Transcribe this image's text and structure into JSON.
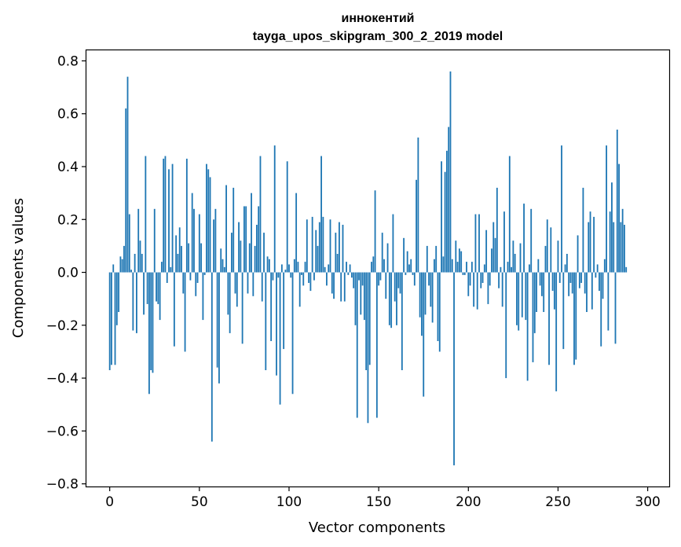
{
  "chart_data": {
    "type": "bar",
    "title": "иннокентий",
    "subtitle": "tayga_upos_skipgram_300_2_2019 model",
    "xlabel": "Vector components",
    "ylabel": "Components values",
    "xlim": [
      -13,
      312
    ],
    "ylim": [
      -0.81,
      0.84
    ],
    "xticks": [
      0,
      50,
      100,
      150,
      200,
      250,
      300
    ],
    "yticks": [
      -0.8,
      -0.6,
      -0.4,
      -0.2,
      0.0,
      0.2,
      0.4,
      0.6,
      0.8
    ],
    "xtick_labels": [
      "0",
      "50",
      "100",
      "150",
      "200",
      "250",
      "300"
    ],
    "ytick_labels": [
      "−0.8",
      "−0.6",
      "−0.4",
      "−0.2",
      "0.0",
      "0.2",
      "0.4",
      "0.6",
      "0.8"
    ],
    "bar_color": "#1f77b4",
    "grid": false,
    "values": [
      -0.37,
      -0.35,
      0.03,
      -0.35,
      -0.2,
      -0.15,
      0.06,
      0.05,
      0.1,
      0.62,
      0.74,
      0.22,
      0.01,
      -0.22,
      0.07,
      -0.23,
      0.24,
      0.12,
      0.07,
      -0.16,
      0.44,
      -0.12,
      -0.46,
      -0.37,
      -0.38,
      0.24,
      -0.11,
      -0.12,
      -0.18,
      0.04,
      0.43,
      0.44,
      -0.04,
      0.39,
      0.02,
      0.41,
      -0.28,
      0.14,
      0.07,
      0.17,
      0.1,
      -0.08,
      -0.3,
      0.43,
      0.11,
      -0.03,
      0.3,
      0.24,
      -0.09,
      -0.04,
      0.22,
      0.11,
      -0.18,
      -0.01,
      0.41,
      0.39,
      0.36,
      -0.64,
      0.2,
      0.24,
      -0.36,
      -0.42,
      0.09,
      0.05,
      0.02,
      0.33,
      -0.16,
      -0.23,
      0.15,
      0.32,
      -0.08,
      -0.13,
      0.19,
      0.12,
      -0.27,
      0.25,
      0.25,
      -0.08,
      0.11,
      0.3,
      -0.09,
      0.1,
      0.18,
      0.25,
      0.44,
      -0.11,
      0.15,
      -0.37,
      0.06,
      0.05,
      -0.26,
      -0.03,
      0.48,
      -0.39,
      -0.02,
      -0.5,
      0.03,
      -0.29,
      0.01,
      0.42,
      0.03,
      -0.02,
      -0.46,
      0.05,
      0.3,
      0.04,
      -0.13,
      -0.01,
      -0.05,
      0.04,
      0.2,
      -0.04,
      -0.07,
      0.21,
      -0.03,
      0.16,
      0.1,
      0.19,
      0.44,
      0.21,
      0.02,
      -0.05,
      0.03,
      0.2,
      -0.08,
      -0.1,
      0.15,
      0.07,
      0.19,
      -0.11,
      0.18,
      -0.11,
      0.04,
      -0.01,
      0.03,
      -0.02,
      -0.06,
      -0.2,
      -0.55,
      -0.03,
      -0.16,
      -0.05,
      -0.18,
      -0.37,
      -0.57,
      -0.35,
      0.04,
      0.06,
      0.31,
      -0.55,
      -0.05,
      -0.03,
      0.15,
      0.05,
      -0.1,
      0.11,
      -0.2,
      -0.21,
      0.22,
      -0.11,
      -0.2,
      -0.06,
      -0.08,
      -0.37,
      0.13,
      -0.01,
      0.08,
      0.03,
      0.05,
      -0.01,
      -0.05,
      0.35,
      0.51,
      -0.17,
      -0.24,
      -0.47,
      -0.16,
      0.1,
      -0.05,
      -0.13,
      -0.19,
      0.05,
      0.1,
      -0.26,
      -0.3,
      0.42,
      0.06,
      0.38,
      0.46,
      0.55,
      0.76,
      0.05,
      -0.73,
      0.12,
      0.04,
      0.09,
      0.08,
      -0.01,
      -0.01,
      0.04,
      -0.09,
      -0.05,
      0.04,
      -0.13,
      0.22,
      -0.14,
      0.22,
      -0.06,
      -0.04,
      0.03,
      0.16,
      -0.12,
      -0.05,
      0.09,
      0.19,
      0.13,
      0.32,
      -0.06,
      0.02,
      -0.13,
      0.23,
      -0.4,
      0.04,
      0.44,
      0.02,
      0.12,
      0.07,
      -0.2,
      -0.22,
      0.11,
      -0.17,
      0.26,
      -0.18,
      -0.41,
      0.03,
      0.24,
      -0.34,
      -0.23,
      -0.15,
      0.05,
      -0.05,
      -0.09,
      -0.15,
      0.1,
      0.2,
      -0.35,
      0.17,
      -0.07,
      -0.14,
      -0.45,
      0.12,
      -0.04,
      0.48,
      -0.29,
      0.03,
      0.07,
      -0.09,
      -0.04,
      -0.08,
      -0.35,
      -0.33,
      0.14,
      -0.06,
      -0.04,
      0.32,
      -0.08,
      -0.15,
      0.19,
      0.23,
      -0.14,
      0.21,
      -0.02,
      0.03,
      -0.07,
      -0.28,
      -0.1,
      0.05,
      0.48,
      -0.22,
      0.23,
      0.34,
      0.19,
      -0.27,
      0.54,
      0.41,
      0.19,
      0.24,
      0.18,
      0.02
    ]
  }
}
